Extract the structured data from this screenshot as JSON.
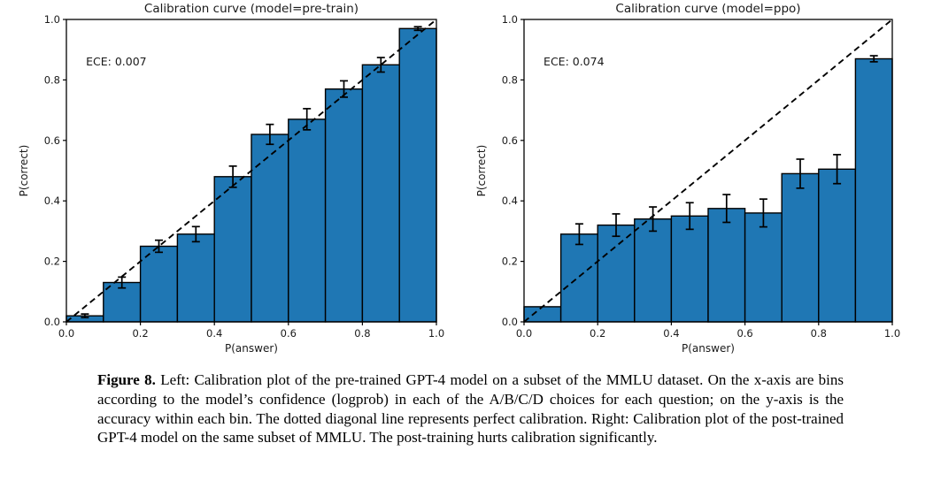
{
  "figure_caption": {
    "label": "Figure 8.",
    "text": "Left: Calibration plot of the pre-trained GPT-4 model on a subset of the MMLU dataset. On the x-axis are bins according to the model’s confidence (logprob) in each of the A/B/C/D choices for each question; on the y-axis is the accuracy within each bin. The dotted diagonal line represents perfect calibration. Right: Calibration plot of the post-trained GPT-4 model on the same subset of MMLU. The post-training hurts calibration significantly."
  },
  "chart_data": [
    {
      "type": "bar",
      "title": "Calibration curve (model=pre-train)",
      "annotation": "ECE: 0.007",
      "xlabel": "P(answer)",
      "ylabel": "P(correct)",
      "xlim": [
        0.0,
        1.0
      ],
      "ylim": [
        0.0,
        1.0
      ],
      "xticks": [
        0.0,
        0.2,
        0.4,
        0.6,
        0.8,
        1.0
      ],
      "yticks": [
        0.0,
        0.2,
        0.4,
        0.6,
        0.8,
        1.0
      ],
      "grid": false,
      "bin_edges": [
        0.0,
        0.1,
        0.2,
        0.3,
        0.4,
        0.5,
        0.6,
        0.7,
        0.8,
        0.9,
        1.0
      ],
      "values": [
        0.02,
        0.13,
        0.25,
        0.29,
        0.48,
        0.62,
        0.67,
        0.77,
        0.85,
        0.97
      ],
      "errors": [
        0.006,
        0.018,
        0.02,
        0.025,
        0.035,
        0.033,
        0.035,
        0.027,
        0.024,
        0.006
      ],
      "bar_color": "#1f77b4",
      "bar_edge_color": "#000000",
      "diagonal_line": {
        "style": "dashed",
        "from": [
          0,
          0
        ],
        "to": [
          1,
          1
        ],
        "color": "#000000"
      }
    },
    {
      "type": "bar",
      "title": "Calibration curve (model=ppo)",
      "annotation": "ECE: 0.074",
      "xlabel": "P(answer)",
      "ylabel": "P(correct)",
      "xlim": [
        0.0,
        1.0
      ],
      "ylim": [
        0.0,
        1.0
      ],
      "xticks": [
        0.0,
        0.2,
        0.4,
        0.6,
        0.8,
        1.0
      ],
      "yticks": [
        0.0,
        0.2,
        0.4,
        0.6,
        0.8,
        1.0
      ],
      "grid": false,
      "bin_edges": [
        0.0,
        0.1,
        0.2,
        0.3,
        0.4,
        0.5,
        0.6,
        0.7,
        0.8,
        0.9,
        1.0
      ],
      "values": [
        0.05,
        0.29,
        0.32,
        0.34,
        0.35,
        0.375,
        0.36,
        0.49,
        0.505,
        0.87
      ],
      "errors": [
        0,
        0.034,
        0.037,
        0.04,
        0.044,
        0.046,
        0.046,
        0.048,
        0.048,
        0.01
      ],
      "bar_color": "#1f77b4",
      "bar_edge_color": "#000000",
      "diagonal_line": {
        "style": "dashed",
        "from": [
          0,
          0
        ],
        "to": [
          1,
          1
        ],
        "color": "#000000"
      }
    }
  ]
}
